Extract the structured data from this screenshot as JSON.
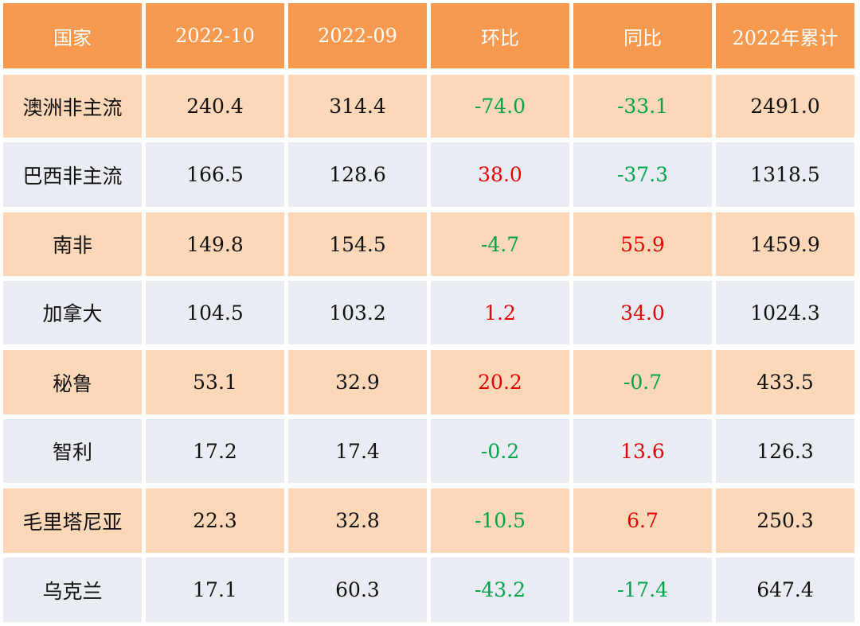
{
  "chart_data": {
    "type": "table",
    "columns": [
      "国家",
      "2022-10",
      "2022-09",
      "环比",
      "同比",
      "2022年累计"
    ],
    "rows": [
      [
        "澳洲非主流",
        "240.4",
        "314.4",
        "-74.0",
        "-33.1",
        "2491.0"
      ],
      [
        "巴西非主流",
        "166.5",
        "128.6",
        "38.0",
        "-37.3",
        "1318.5"
      ],
      [
        "南非",
        "149.8",
        "154.5",
        "-4.7",
        "55.9",
        "1459.9"
      ],
      [
        "加拿大",
        "104.5",
        "103.2",
        "1.2",
        "34.0",
        "1024.3"
      ],
      [
        "秘鲁",
        "53.1",
        "32.9",
        "20.2",
        "-0.7",
        "433.5"
      ],
      [
        "智利",
        "17.2",
        "17.4",
        "-0.2",
        "13.6",
        "126.3"
      ],
      [
        "毛里塔尼亚",
        "22.3",
        "32.8",
        "-10.5",
        "6.7",
        "250.3"
      ],
      [
        "乌克兰",
        "17.1",
        "60.3",
        "-43.2",
        "-17.4",
        "647.4"
      ]
    ]
  },
  "colors": {
    "header_bg": "#f79a4f",
    "row_odd_bg": "#fcd8b8",
    "row_even_bg": "#e9edf3",
    "text": "#111111",
    "header_text": "#ffffff",
    "positive": "#e60000",
    "negative": "#00a34a"
  }
}
